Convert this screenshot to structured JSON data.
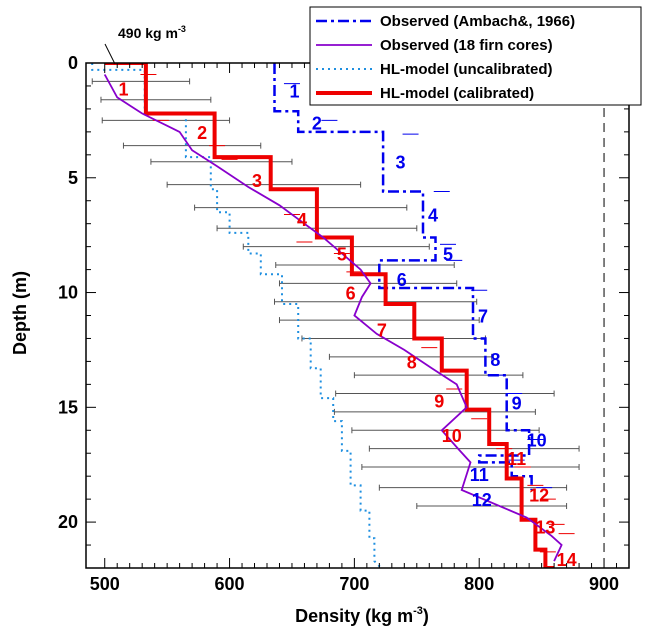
{
  "chart_data": {
    "type": "line",
    "xlabel": "Density (kg m",
    "xlabel_sup": "-3",
    "xlabel_tail": ")",
    "ylabel": "Depth (m)",
    "xlim": [
      485,
      920
    ],
    "ylim": [
      0,
      22
    ],
    "y_inverted": true,
    "x_ticks": [
      500,
      600,
      700,
      800,
      900
    ],
    "y_ticks": [
      0,
      5,
      10,
      15,
      20
    ],
    "annotation": {
      "text": "490 kg m",
      "sup": "-3",
      "at": [
        490,
        0
      ]
    },
    "reference_line_x": 900,
    "legend": {
      "position": "top-right",
      "items": [
        {
          "label": "Observed (Ambach&, 1966)",
          "color": "#0000ee",
          "style": "dashdot"
        },
        {
          "label": "Observed (18 firn cores)",
          "color": "#8800cc",
          "style": "solid"
        },
        {
          "label": "HL-model (uncalibrated)",
          "color": "#1e8fe0",
          "style": "dotted"
        },
        {
          "label": "HL-model (calibrated)",
          "color": "#ee0000",
          "style": "solid-thick"
        }
      ]
    },
    "series": [
      {
        "name": "Observed (Ambach&, 1966)",
        "color": "#0000ee",
        "x": [
          636,
          636,
          655,
          655,
          723,
          723,
          755,
          755,
          765,
          765,
          720,
          720,
          795,
          795,
          805,
          805,
          822,
          822,
          840,
          840,
          800,
          800,
          826,
          826,
          842,
          842
        ],
        "y": [
          0,
          2.1,
          2.1,
          3.0,
          3.0,
          5.6,
          5.6,
          7.6,
          7.6,
          8.6,
          8.6,
          9.8,
          9.8,
          12.0,
          12.0,
          13.6,
          13.6,
          16.0,
          16.0,
          17.1,
          17.1,
          17.4,
          17.4,
          18.0,
          18.0,
          18.6
        ]
      },
      {
        "name": "Observed (18 firn cores)",
        "color": "#8800cc",
        "x": [
          500,
          510,
          530,
          560,
          570,
          590,
          615,
          640,
          660,
          675,
          690,
          705,
          713,
          706,
          700,
          718,
          740,
          762,
          782,
          790,
          770,
          783,
          793,
          786,
          838,
          858,
          866,
          860
        ],
        "y": [
          0.5,
          1.5,
          2.2,
          3.0,
          3.8,
          4.5,
          5.4,
          6.2,
          7.0,
          7.6,
          8.3,
          9.0,
          9.6,
          10.2,
          11.0,
          11.8,
          12.5,
          13.3,
          14.0,
          15.0,
          16.0,
          16.8,
          17.4,
          18.6,
          19.8,
          20.6,
          21.0,
          21.7
        ]
      },
      {
        "name": "HL-model (uncalibrated)",
        "color": "#1e8fe0",
        "x": [
          490,
          490,
          532,
          532,
          565,
          565,
          585,
          585,
          590,
          590,
          600,
          600,
          615,
          615,
          625,
          625,
          642,
          642,
          655,
          655,
          665,
          665,
          673,
          673,
          683,
          683,
          690,
          690,
          697,
          697,
          705,
          705,
          712,
          712,
          716,
          716,
          725
        ],
        "y": [
          0,
          0.3,
          0.3,
          2.2,
          2.2,
          4.1,
          4.1,
          5.5,
          5.5,
          6.5,
          6.5,
          7.4,
          7.4,
          8.3,
          8.3,
          9.2,
          9.2,
          10.5,
          10.5,
          12.0,
          12.0,
          13.3,
          13.3,
          14.6,
          14.6,
          15.6,
          15.6,
          16.9,
          16.9,
          18.4,
          18.4,
          19.5,
          19.5,
          20.7,
          20.7,
          21.7,
          22.2
        ]
      },
      {
        "name": "HL-model (calibrated)",
        "color": "#ee0000",
        "x": [
          500,
          533,
          533,
          533,
          533,
          588,
          588,
          633,
          633,
          670,
          670,
          698,
          698,
          725,
          725,
          748,
          748,
          770,
          770,
          790,
          790,
          808,
          808,
          822,
          822,
          834,
          834,
          845,
          845,
          853,
          853,
          860
        ],
        "y": [
          0,
          0,
          0,
          2.2,
          2.2,
          2.2,
          4.1,
          4.1,
          5.5,
          5.5,
          7.6,
          7.6,
          9.2,
          9.2,
          10.5,
          10.5,
          12.0,
          12.0,
          13.4,
          13.4,
          15.1,
          15.1,
          16.6,
          16.6,
          18.1,
          18.1,
          19.9,
          19.9,
          21.2,
          21.2,
          22.0,
          22.0
        ]
      }
    ],
    "error_bars": {
      "color": "#555555",
      "depths": [
        0.8,
        1.6,
        2.5,
        3.6,
        4.3,
        5.3,
        6.3,
        7.2,
        8.0,
        8.8,
        9.6,
        10.4,
        11.2,
        12.0,
        12.8,
        13.6,
        14.4,
        15.2,
        16.0,
        16.8,
        17.6,
        18.5,
        19.3
      ],
      "lo": [
        490,
        497,
        498,
        515,
        537,
        550,
        572,
        590,
        611,
        637,
        640,
        636,
        640,
        658,
        680,
        700,
        685,
        684,
        698,
        712,
        706,
        720,
        750
      ],
      "hi": [
        568,
        585,
        600,
        625,
        650,
        705,
        742,
        750,
        760,
        780,
        782,
        798,
        800,
        805,
        810,
        835,
        860,
        845,
        848,
        880,
        880,
        870,
        870
      ]
    },
    "red_dashes": [
      [
        535,
        0.5
      ],
      [
        545,
        2.5
      ],
      [
        590,
        3.6
      ],
      [
        600,
        4.2
      ],
      [
        650,
        6.6
      ],
      [
        660,
        7.8
      ],
      [
        700,
        9.1
      ],
      [
        690,
        8.3
      ],
      [
        735,
        10.5
      ],
      [
        760,
        12.4
      ],
      [
        780,
        14.2
      ],
      [
        800,
        15.5
      ],
      [
        820,
        16.8
      ],
      [
        835,
        17.6
      ],
      [
        845,
        18.4
      ],
      [
        855,
        19.0
      ],
      [
        862,
        20.1
      ],
      [
        870,
        20.5
      ],
      [
        855,
        21.3
      ]
    ],
    "blue_dashes": [
      [
        650,
        0.9
      ],
      [
        680,
        2.5
      ],
      [
        745,
        3.1
      ],
      [
        770,
        5.6
      ],
      [
        775,
        7.9
      ],
      [
        780,
        8.6
      ],
      [
        800,
        9.9
      ],
      [
        813,
        13.6
      ],
      [
        828,
        14.4
      ],
      [
        845,
        16.4
      ],
      [
        852,
        18.5
      ],
      [
        830,
        17.3
      ]
    ],
    "red_labels": [
      {
        "text": "1",
        "x": 515,
        "y": 1.1
      },
      {
        "text": "2",
        "x": 578,
        "y": 3.0
      },
      {
        "text": "3",
        "x": 622,
        "y": 5.1
      },
      {
        "text": "4",
        "x": 658,
        "y": 6.8
      },
      {
        "text": "5",
        "x": 690,
        "y": 8.3
      },
      {
        "text": "6",
        "x": 697,
        "y": 10.0
      },
      {
        "text": "7",
        "x": 722,
        "y": 11.6
      },
      {
        "text": "8",
        "x": 746,
        "y": 13.0
      },
      {
        "text": "9",
        "x": 768,
        "y": 14.7
      },
      {
        "text": "10",
        "x": 778,
        "y": 16.2
      },
      {
        "text": "11",
        "x": 830,
        "y": 17.2
      },
      {
        "text": "12",
        "x": 848,
        "y": 18.8
      },
      {
        "text": "13",
        "x": 853,
        "y": 20.2
      },
      {
        "text": "14",
        "x": 870,
        "y": 21.6
      }
    ],
    "blue_labels": [
      {
        "text": "1",
        "x": 652,
        "y": 1.2
      },
      {
        "text": "2",
        "x": 670,
        "y": 2.6
      },
      {
        "text": "3",
        "x": 737,
        "y": 4.3
      },
      {
        "text": "4",
        "x": 763,
        "y": 6.6
      },
      {
        "text": "5",
        "x": 775,
        "y": 8.3
      },
      {
        "text": "6",
        "x": 738,
        "y": 9.4
      },
      {
        "text": "7",
        "x": 803,
        "y": 11.0
      },
      {
        "text": "8",
        "x": 813,
        "y": 12.9
      },
      {
        "text": "9",
        "x": 830,
        "y": 14.8
      },
      {
        "text": "10",
        "x": 846,
        "y": 16.4
      },
      {
        "text": "11",
        "x": 800,
        "y": 17.9
      },
      {
        "text": "12",
        "x": 802,
        "y": 19.0
      }
    ]
  }
}
